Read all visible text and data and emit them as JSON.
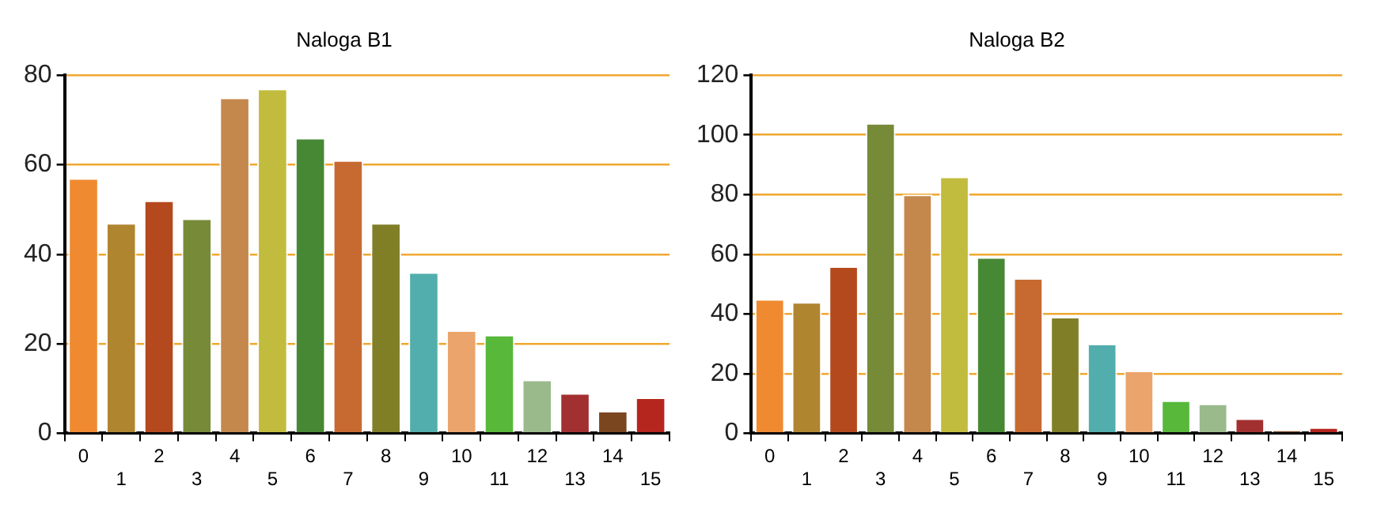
{
  "chart_data": [
    {
      "type": "bar",
      "title": "Naloga B1",
      "categories": [
        "0",
        "1",
        "2",
        "3",
        "4",
        "5",
        "6",
        "7",
        "8",
        "9",
        "10",
        "11",
        "12",
        "13",
        "14",
        "15"
      ],
      "values": [
        57,
        47,
        52,
        48,
        75,
        77,
        66,
        61,
        47,
        36,
        23,
        22,
        12,
        9,
        5,
        8
      ],
      "colors": [
        "#f08a30",
        "#b08530",
        "#b4491e",
        "#778a38",
        "#c4884c",
        "#c2bc3e",
        "#478834",
        "#c76a32",
        "#817e28",
        "#52aeac",
        "#eaa46c",
        "#58b83a",
        "#9aba8c",
        "#a33030",
        "#7a4620",
        "#b5261e"
      ],
      "ylim": [
        0,
        80
      ],
      "yticks": [
        0,
        20,
        40,
        60,
        80
      ],
      "grid": "y",
      "legend": false
    },
    {
      "type": "bar",
      "title": "Naloga B2",
      "categories": [
        "0",
        "1",
        "2",
        "3",
        "4",
        "5",
        "6",
        "7",
        "8",
        "9",
        "10",
        "11",
        "12",
        "13",
        "14",
        "15"
      ],
      "values": [
        45,
        44,
        56,
        104,
        80,
        86,
        59,
        52,
        39,
        30,
        21,
        11,
        10,
        5,
        1,
        2
      ],
      "colors": [
        "#f08a30",
        "#b08530",
        "#b4491e",
        "#778a38",
        "#c4884c",
        "#c2bc3e",
        "#478834",
        "#c76a32",
        "#817e28",
        "#52aeac",
        "#eaa46c",
        "#58b83a",
        "#9aba8c",
        "#a33030",
        "#7a4620",
        "#b5261e"
      ],
      "ylim": [
        0,
        120
      ],
      "yticks": [
        0,
        20,
        40,
        60,
        80,
        100,
        120
      ],
      "grid": "y",
      "legend": false
    }
  ]
}
